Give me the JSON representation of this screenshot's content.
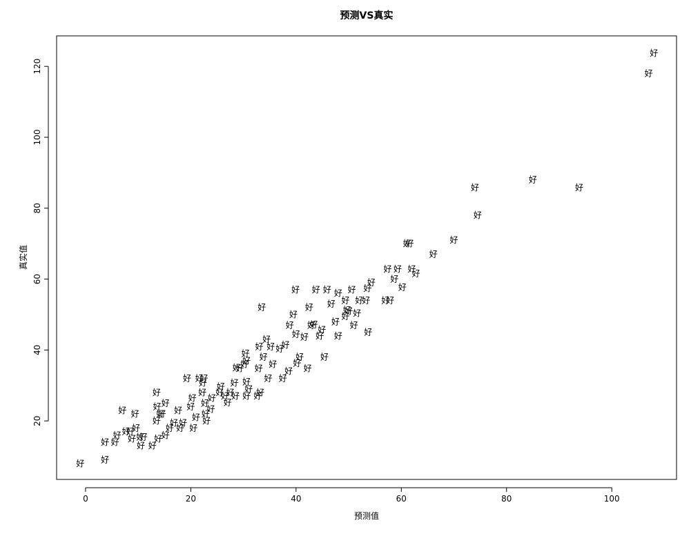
{
  "chart_data": {
    "type": "scatter",
    "title": "预测VS真实",
    "x_label": "预测值",
    "y_label": "真实值",
    "marker": "好",
    "color": "#000000",
    "xlim": [
      -5.5,
      112.3
    ],
    "ylim": [
      3.5,
      128.6
    ],
    "xticks": [
      0,
      20,
      40,
      60,
      80,
      100
    ],
    "yticks": [
      20,
      40,
      60,
      80,
      100,
      120
    ],
    "x": [
      -1,
      3.7,
      3.7,
      5.6,
      6,
      7,
      7.7,
      8.5,
      9.4,
      9.6,
      8.8,
      10.4,
      10.5,
      11,
      12.7,
      13.5,
      13.5,
      13.6,
      14.2,
      14.5,
      15.2,
      13.8,
      15.2,
      16,
      16.8,
      17.6,
      18,
      18.5,
      19.3,
      20,
      20.3,
      20.5,
      21,
      21.6,
      22.3,
      22.5,
      22.2,
      22.7,
      22.8,
      23,
      23.8,
      24,
      25.5,
      25.7,
      26.5,
      27,
      27.5,
      28.3,
      28.5,
      28.7,
      29.3,
      30.2,
      30.4,
      30.6,
      30.6,
      30.6,
      31,
      32.7,
      32.9,
      33,
      33.2,
      33.5,
      33.8,
      34.4,
      34.7,
      35.2,
      35.6,
      36.9,
      37.5,
      38,
      38.6,
      38.8,
      39.5,
      39.9,
      40,
      40.2,
      40.7,
      41.6,
      42.2,
      42.5,
      42.9,
      43.4,
      43.8,
      44.5,
      44.9,
      45.4,
      45.9,
      46.7,
      47.5,
      48,
      48,
      49.4,
      49.4,
      49.7,
      50,
      50.6,
      51,
      51.6,
      52,
      53.3,
      53.6,
      53.7,
      54.3,
      57,
      57.9,
      57.4,
      58.7,
      59.3,
      60.2,
      61.1,
      61.6,
      62,
      62.8,
      66.1,
      70,
      74,
      74.5,
      85,
      93.8,
      107,
      108
    ],
    "y": [
      8,
      9,
      14,
      14,
      16,
      23,
      17,
      17,
      22,
      18,
      15,
      15.5,
      13,
      15.5,
      13,
      28,
      20,
      24,
      22,
      22,
      25,
      15,
      16,
      18,
      19.5,
      23,
      18,
      19.5,
      32,
      24,
      26.5,
      18,
      21,
      32,
      30.7,
      32,
      28,
      25,
      22,
      20,
      23.3,
      26.5,
      28,
      29.7,
      27,
      25.2,
      28,
      30.7,
      27,
      35,
      34.8,
      36,
      39,
      37,
      31,
      27,
      29,
      27,
      34.8,
      41,
      28,
      52,
      38,
      43,
      32,
      41,
      36,
      40.4,
      32,
      41.4,
      34,
      47,
      50,
      57,
      44.5,
      36.3,
      38,
      43.7,
      34.8,
      52,
      47,
      47.2,
      57,
      44,
      45.7,
      38,
      57,
      53,
      48,
      56,
      44,
      54,
      49.5,
      51.3,
      51,
      57,
      47,
      50.4,
      54,
      54,
      57.4,
      45,
      59,
      54,
      54,
      62.8,
      60,
      62.8,
      57.7,
      70,
      70,
      62.8,
      61.6,
      67,
      71,
      85.8,
      78,
      88,
      85.8,
      118,
      123.7
    ]
  }
}
